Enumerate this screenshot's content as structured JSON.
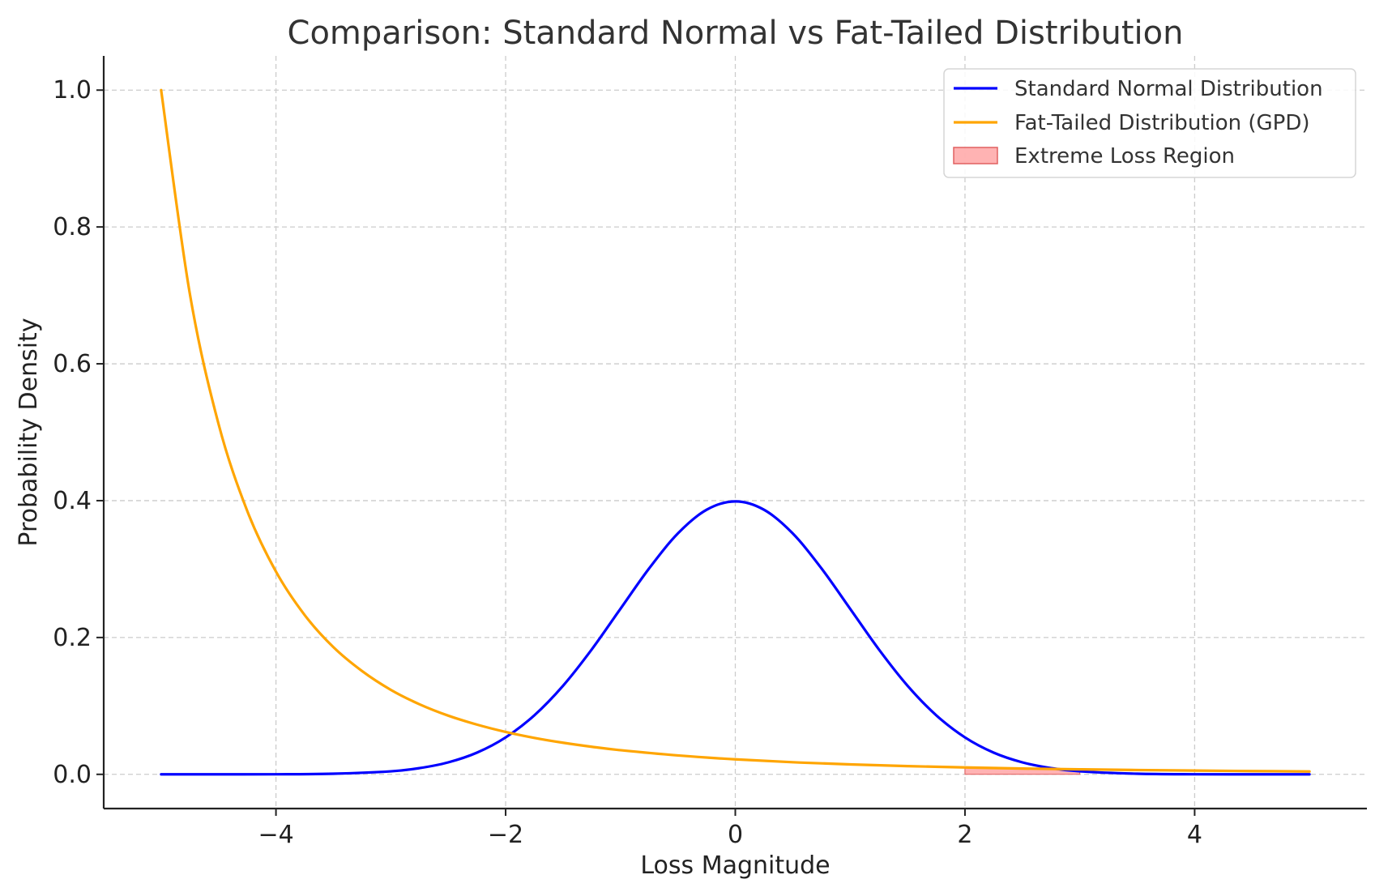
{
  "chart_data": {
    "type": "line",
    "title": "Comparison: Standard Normal vs Fat-Tailed Distribution",
    "xlabel": "Loss Magnitude",
    "ylabel": "Probability Density",
    "xlim": [
      -5.5,
      5.5
    ],
    "ylim": [
      -0.05,
      1.05
    ],
    "x_ticks": [
      -4,
      -2,
      0,
      2,
      4
    ],
    "x_tick_labels": [
      "−4",
      "−2",
      "0",
      "2",
      "4"
    ],
    "y_ticks": [
      0.0,
      0.2,
      0.4,
      0.6,
      0.8,
      1.0
    ],
    "y_tick_labels": [
      "0.0",
      "0.2",
      "0.4",
      "0.6",
      "0.8",
      "1.0"
    ],
    "grid": true,
    "legend_position": "top-right",
    "colors": {
      "normal": "#0000ff",
      "gpd": "#ffa500",
      "region_fill": "#ff9999",
      "region_edge": "#e06060",
      "grid": "#cccccc",
      "axis": "#222222"
    },
    "series": [
      {
        "name": "Standard Normal Distribution",
        "color": "#0000ff",
        "x": [
          -5.0,
          -4.5,
          -4.0,
          -3.5,
          -3.0,
          -2.75,
          -2.5,
          -2.25,
          -2.0,
          -1.75,
          -1.5,
          -1.25,
          -1.0,
          -0.75,
          -0.5,
          -0.25,
          0.0,
          0.25,
          0.5,
          0.75,
          1.0,
          1.25,
          1.5,
          1.75,
          2.0,
          2.25,
          2.5,
          2.75,
          3.0,
          3.5,
          4.0,
          4.5,
          5.0
        ],
        "y": [
          0.0,
          0.0,
          0.0001,
          0.0009,
          0.0044,
          0.0091,
          0.0175,
          0.0317,
          0.054,
          0.0863,
          0.1295,
          0.1826,
          0.242,
          0.3011,
          0.3521,
          0.3867,
          0.3989,
          0.3867,
          0.3521,
          0.3011,
          0.242,
          0.1826,
          0.1295,
          0.0863,
          0.054,
          0.0317,
          0.0175,
          0.0091,
          0.0044,
          0.0009,
          0.0001,
          0.0,
          0.0
        ]
      },
      {
        "name": "Fat-Tailed Distribution (GPD)",
        "color": "#ffa500",
        "x": [
          -5.0,
          -4.75,
          -4.5,
          -4.25,
          -4.0,
          -3.75,
          -3.5,
          -3.25,
          -3.0,
          -2.75,
          -2.5,
          -2.25,
          -2.0,
          -1.75,
          -1.5,
          -1.25,
          -1.0,
          -0.5,
          0.0,
          0.5,
          1.0,
          1.5,
          2.0,
          2.5,
          3.0,
          3.5,
          4.0,
          4.5,
          5.0
        ],
        "y": [
          1.0,
          0.7023,
          0.512,
          0.3849,
          0.2963,
          0.2328,
          0.1859,
          0.1509,
          0.1235,
          0.1024,
          0.0858,
          0.0727,
          0.062,
          0.0533,
          0.0462,
          0.0403,
          0.0353,
          0.0276,
          0.0219,
          0.0177,
          0.0145,
          0.012,
          0.0101,
          0.0085,
          0.0073,
          0.0063,
          0.0055,
          0.0048,
          0.0042
        ]
      }
    ],
    "regions": [
      {
        "name": "Extreme Loss Region",
        "color": "#ff9999",
        "x_start": 2.0,
        "x_end": 3.0
      }
    ]
  }
}
